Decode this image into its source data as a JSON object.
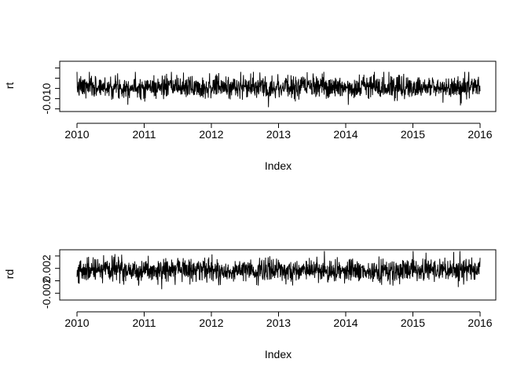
{
  "chart_data": [
    {
      "type": "line",
      "panel": "top",
      "xlabel": "Index",
      "ylabel": "rt",
      "x_ticks": [
        "2010",
        "2011",
        "2012",
        "2013",
        "2014",
        "2015",
        "2016"
      ],
      "x_range": [
        2010,
        2016
      ],
      "y_ticks": [
        -0.015,
        -0.01,
        -0.005,
        0.0,
        0.005
      ],
      "y_tick_labels": [
        "-0.010"
      ],
      "y_tick_label_values": [
        -0.01
      ],
      "ylim": [
        -0.0163,
        0.0083
      ],
      "grid": false,
      "legend": "none",
      "series": [
        {
          "x_start": 2010,
          "x_end": 2016,
          "points": 1500,
          "center": -0.0043,
          "typical_low": -0.01,
          "typical_high": 0.001,
          "min": -0.0142,
          "max": 0.0031,
          "seed": 7
        }
      ]
    },
    {
      "type": "line",
      "panel": "bottom",
      "xlabel": "Index",
      "ylabel": "rd",
      "x_ticks": [
        "2010",
        "2011",
        "2012",
        "2013",
        "2014",
        "2015",
        "2016"
      ],
      "x_range": [
        2010,
        2016
      ],
      "y_ticks": [
        -0.002,
        0.0,
        0.002,
        0.004
      ],
      "y_tick_labels": [
        "-0.002",
        "0.002"
      ],
      "y_tick_label_values": [
        -0.002,
        0.002
      ],
      "ylim": [
        -0.0031,
        0.005
      ],
      "grid": false,
      "legend": "none",
      "series": [
        {
          "x_start": 2010,
          "x_end": 2016,
          "points": 1500,
          "center": 0.0017,
          "typical_low": -0.0006,
          "typical_high": 0.0034,
          "min": -0.0022,
          "max": 0.0048,
          "seed": 19
        }
      ]
    }
  ]
}
